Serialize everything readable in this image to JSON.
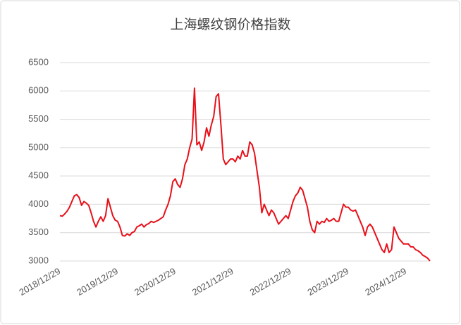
{
  "chart_data": {
    "type": "line",
    "title": "上海螺纹钢价格指数",
    "categories": [
      "2018/12/29",
      null,
      null,
      null,
      null,
      null,
      null,
      null,
      null,
      null,
      null,
      null,
      null,
      null,
      null,
      null,
      null,
      null,
      null,
      null,
      null,
      null,
      null,
      null,
      "2019/12/29",
      null,
      null,
      null,
      null,
      null,
      null,
      null,
      null,
      null,
      null,
      null,
      null,
      null,
      null,
      null,
      null,
      null,
      null,
      null,
      null,
      null,
      null,
      null,
      "2020/12/29",
      null,
      null,
      null,
      null,
      null,
      null,
      null,
      null,
      null,
      null,
      null,
      null,
      null,
      null,
      null,
      null,
      null,
      null,
      null,
      null,
      null,
      null,
      null,
      "2021/12/29",
      null,
      null,
      null,
      null,
      null,
      null,
      null,
      null,
      null,
      null,
      null,
      null,
      null,
      null,
      null,
      null,
      null,
      null,
      null,
      null,
      null,
      null,
      null,
      "2022/12/29",
      null,
      null,
      null,
      null,
      null,
      null,
      null,
      null,
      null,
      null,
      null,
      null,
      null,
      null,
      null,
      null,
      null,
      null,
      null,
      null,
      null,
      null,
      null,
      "2023/12/29",
      null,
      null,
      null,
      null,
      null,
      null,
      null,
      null,
      null,
      null,
      null,
      null,
      null,
      null,
      null,
      null,
      null,
      null,
      null,
      null,
      null,
      null,
      null,
      "2024/12/29",
      null,
      null,
      null,
      null,
      null,
      null,
      null,
      null,
      null,
      null
    ],
    "values": [
      3800,
      3790,
      3830,
      3880,
      3950,
      4050,
      4150,
      4170,
      4120,
      3980,
      4050,
      4020,
      3980,
      3850,
      3700,
      3600,
      3700,
      3780,
      3700,
      3800,
      4100,
      3950,
      3800,
      3720,
      3700,
      3600,
      3450,
      3440,
      3480,
      3450,
      3500,
      3520,
      3600,
      3620,
      3650,
      3600,
      3640,
      3660,
      3700,
      3680,
      3700,
      3720,
      3750,
      3780,
      3900,
      4000,
      4150,
      4400,
      4450,
      4350,
      4300,
      4450,
      4700,
      4800,
      5000,
      5150,
      6050,
      5050,
      5100,
      4950,
      5100,
      5350,
      5200,
      5400,
      5550,
      5900,
      5950,
      5400,
      4800,
      4700,
      4750,
      4800,
      4800,
      4750,
      4850,
      4800,
      4950,
      4850,
      4850,
      5100,
      5050,
      4900,
      4600,
      4300,
      3850,
      4000,
      3900,
      3800,
      3900,
      3850,
      3750,
      3650,
      3700,
      3750,
      3800,
      3750,
      3900,
      4050,
      4150,
      4200,
      4300,
      4250,
      4100,
      3950,
      3700,
      3550,
      3500,
      3700,
      3650,
      3700,
      3680,
      3750,
      3700,
      3720,
      3750,
      3700,
      3700,
      3850,
      4000,
      3950,
      3950,
      3900,
      3880,
      3900,
      3800,
      3700,
      3600,
      3450,
      3600,
      3650,
      3600,
      3500,
      3400,
      3300,
      3200,
      3150,
      3300,
      3150,
      3200,
      3600,
      3500,
      3400,
      3350,
      3300,
      3300,
      3300,
      3250,
      3250,
      3200,
      3180,
      3150,
      3100,
      3080,
      3050,
      3000
    ],
    "color": "#e8101a",
    "ylim": [
      3000,
      6500
    ],
    "yticks": [
      3000,
      3500,
      4000,
      4500,
      5000,
      5500,
      6000,
      6500
    ],
    "grid": true
  }
}
